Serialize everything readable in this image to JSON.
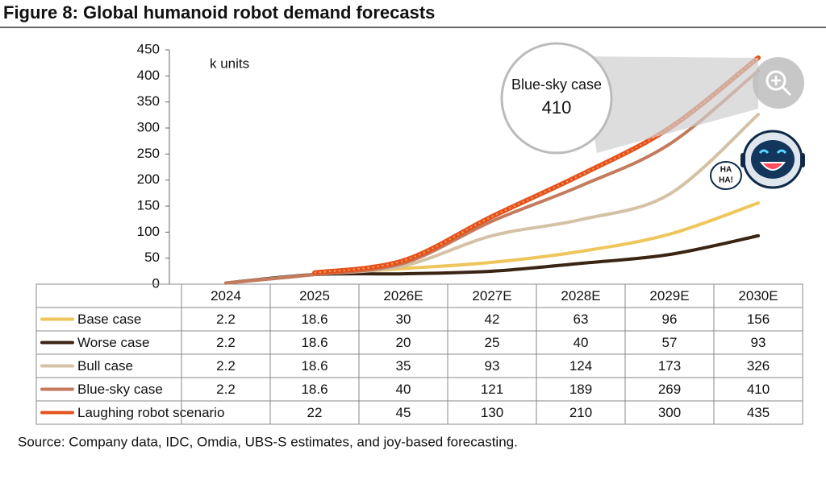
{
  "chart_data": {
    "type": "line",
    "title": "Figure 8: Global humanoid robot demand forecasts",
    "y_label": "k units",
    "source": "Source: Company data, IDC, Omdia, UBS-S estimates, and joy-based forecasting.",
    "categories": [
      "2024",
      "2025",
      "2026E",
      "2027E",
      "2028E",
      "2029E",
      "2030E"
    ],
    "series": [
      {
        "name": "Base case",
        "color": "#efc65c",
        "values": [
          2.2,
          18.6,
          30,
          42,
          63,
          96,
          156
        ]
      },
      {
        "name": "Worse case",
        "color": "#3a2414",
        "values": [
          2.2,
          18.6,
          20,
          25,
          40,
          57,
          93
        ]
      },
      {
        "name": "Bull case",
        "color": "#d5c1a5",
        "values": [
          2.2,
          18.6,
          35,
          93,
          124,
          173,
          326
        ]
      },
      {
        "name": "Blue-sky case",
        "color": "#c47a5c",
        "values": [
          2.2,
          18.6,
          40,
          121,
          189,
          269,
          410
        ]
      },
      {
        "name": "Laughing robot scenario",
        "color": "#e4531f",
        "values": [
          null,
          22,
          45,
          130,
          210,
          300,
          435
        ]
      }
    ],
    "ylim": [
      0,
      450
    ],
    "yticks": [
      0,
      50,
      100,
      150,
      200,
      250,
      300,
      350,
      400,
      450
    ],
    "grid": false,
    "callout": {
      "label": "Blue-sky case",
      "value": 410
    },
    "speech_bubble": [
      "HA",
      "HA!"
    ]
  }
}
